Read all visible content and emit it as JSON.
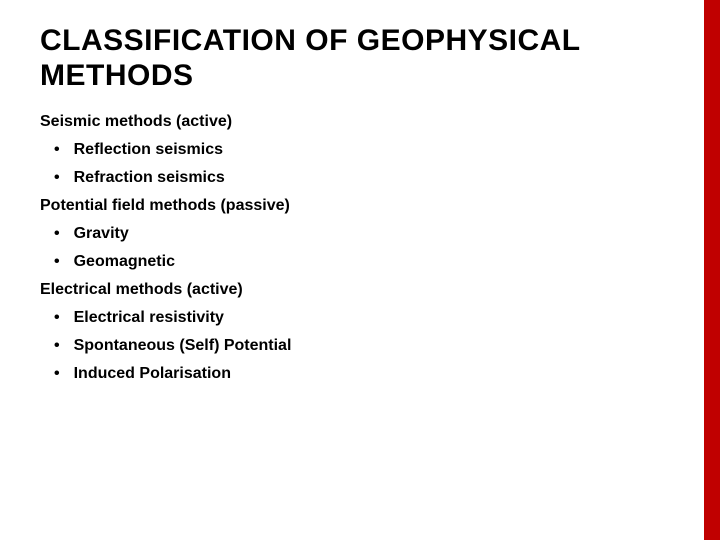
{
  "slide": {
    "title": "CLASSIFICATION OF GEOPHYSICAL METHODS",
    "accent_color": "#c00000",
    "background_color": "#ffffff",
    "text_color": "#000000",
    "title_fontsize": 30,
    "body_fontsize": 16,
    "sections": [
      {
        "heading": "Seismic methods (active)",
        "items": [
          "Reflection seismics",
          "Refraction seismics"
        ]
      },
      {
        "heading": "Potential field methods (passive)",
        "items": [
          "Gravity",
          "Geomagnetic"
        ]
      },
      {
        "heading": "Electrical methods (active)",
        "items": [
          "Electrical resistivity",
          "Spontaneous (Self) Potential",
          "Induced Polarisation"
        ]
      }
    ]
  }
}
